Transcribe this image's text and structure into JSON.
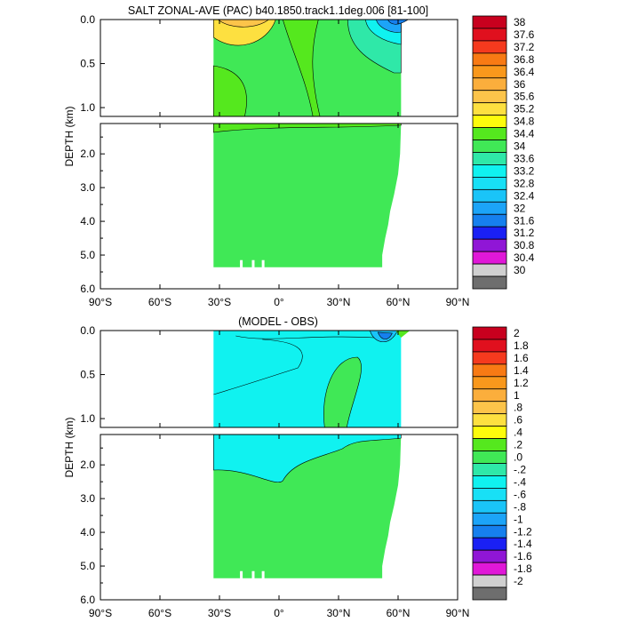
{
  "chart_data": [
    {
      "type": "heatmap",
      "title": "SALT ZONAL-AVE (PAC) b40.1850.track1.1deg.006 [81-100]",
      "ylabel": "DEPTH (km)",
      "xlabel": "",
      "x_ticks": [
        "90°S",
        "60°S",
        "30°S",
        "0°",
        "30°N",
        "60°N",
        "90°N"
      ],
      "y_ticks_upper": [
        "0.0",
        "0.5",
        "1.0"
      ],
      "y_ticks_lower": [
        "2.0",
        "3.0",
        "4.0",
        "5.0",
        "6.0"
      ],
      "xlim": [
        -90,
        90
      ],
      "ylim_upper_km": [
        0,
        1.1
      ],
      "ylim_lower_km": [
        1.1,
        6.0
      ],
      "colorbar_labels": [
        "38",
        "37.6",
        "37.2",
        "36.8",
        "36.4",
        "36",
        "35.6",
        "35.2",
        "34.8",
        "34.4",
        "34",
        "33.6",
        "33.2",
        "32.8",
        "32.4",
        "32",
        "31.6",
        "31.2",
        "30.8",
        "30.4",
        "30"
      ],
      "colorbar_colors": [
        "#c8001e",
        "#e0101e",
        "#f53a1e",
        "#f87a14",
        "#f9981c",
        "#fbae3c",
        "#fcc44a",
        "#fde040",
        "#fdfc0c",
        "#55e81e",
        "#40e856",
        "#2fe8a8",
        "#10f2f0",
        "#18e0f6",
        "#1ac4f8",
        "#1ca4f8",
        "#1680ee",
        "#1a20f4",
        "#9016d6",
        "#e018d8",
        "#d0d0d0",
        "#6e6e6e"
      ]
    },
    {
      "type": "heatmap",
      "title": "(MODEL - OBS)",
      "ylabel": "DEPTH (km)",
      "xlabel": "",
      "x_ticks": [
        "90°S",
        "60°S",
        "30°S",
        "0°",
        "30°N",
        "60°N",
        "90°N"
      ],
      "y_ticks_upper": [
        "0.0",
        "0.5",
        "1.0"
      ],
      "y_ticks_lower": [
        "2.0",
        "3.0",
        "4.0",
        "5.0",
        "6.0"
      ],
      "xlim": [
        -90,
        90
      ],
      "ylim_upper_km": [
        0,
        1.1
      ],
      "ylim_lower_km": [
        1.1,
        6.0
      ],
      "colorbar_labels": [
        "2",
        "1.8",
        "1.6",
        "1.4",
        "1.2",
        "1",
        ".8",
        ".6",
        ".4",
        ".2",
        ".0",
        "-.2",
        "-.4",
        "-.6",
        "-.8",
        "-1",
        "-1.2",
        "-1.4",
        "-1.6",
        "-1.8",
        "-2"
      ],
      "colorbar_colors": [
        "#c8001e",
        "#e0101e",
        "#f53a1e",
        "#f87a14",
        "#f9981c",
        "#fbae3c",
        "#fcc44a",
        "#fde040",
        "#fdfc0c",
        "#55e81e",
        "#40e856",
        "#2fe8a8",
        "#10f2f0",
        "#18e0f6",
        "#1ac4f8",
        "#1ca4f8",
        "#1680ee",
        "#1a20f4",
        "#9016d6",
        "#e018d8",
        "#d0d0d0",
        "#6e6e6e"
      ]
    }
  ]
}
